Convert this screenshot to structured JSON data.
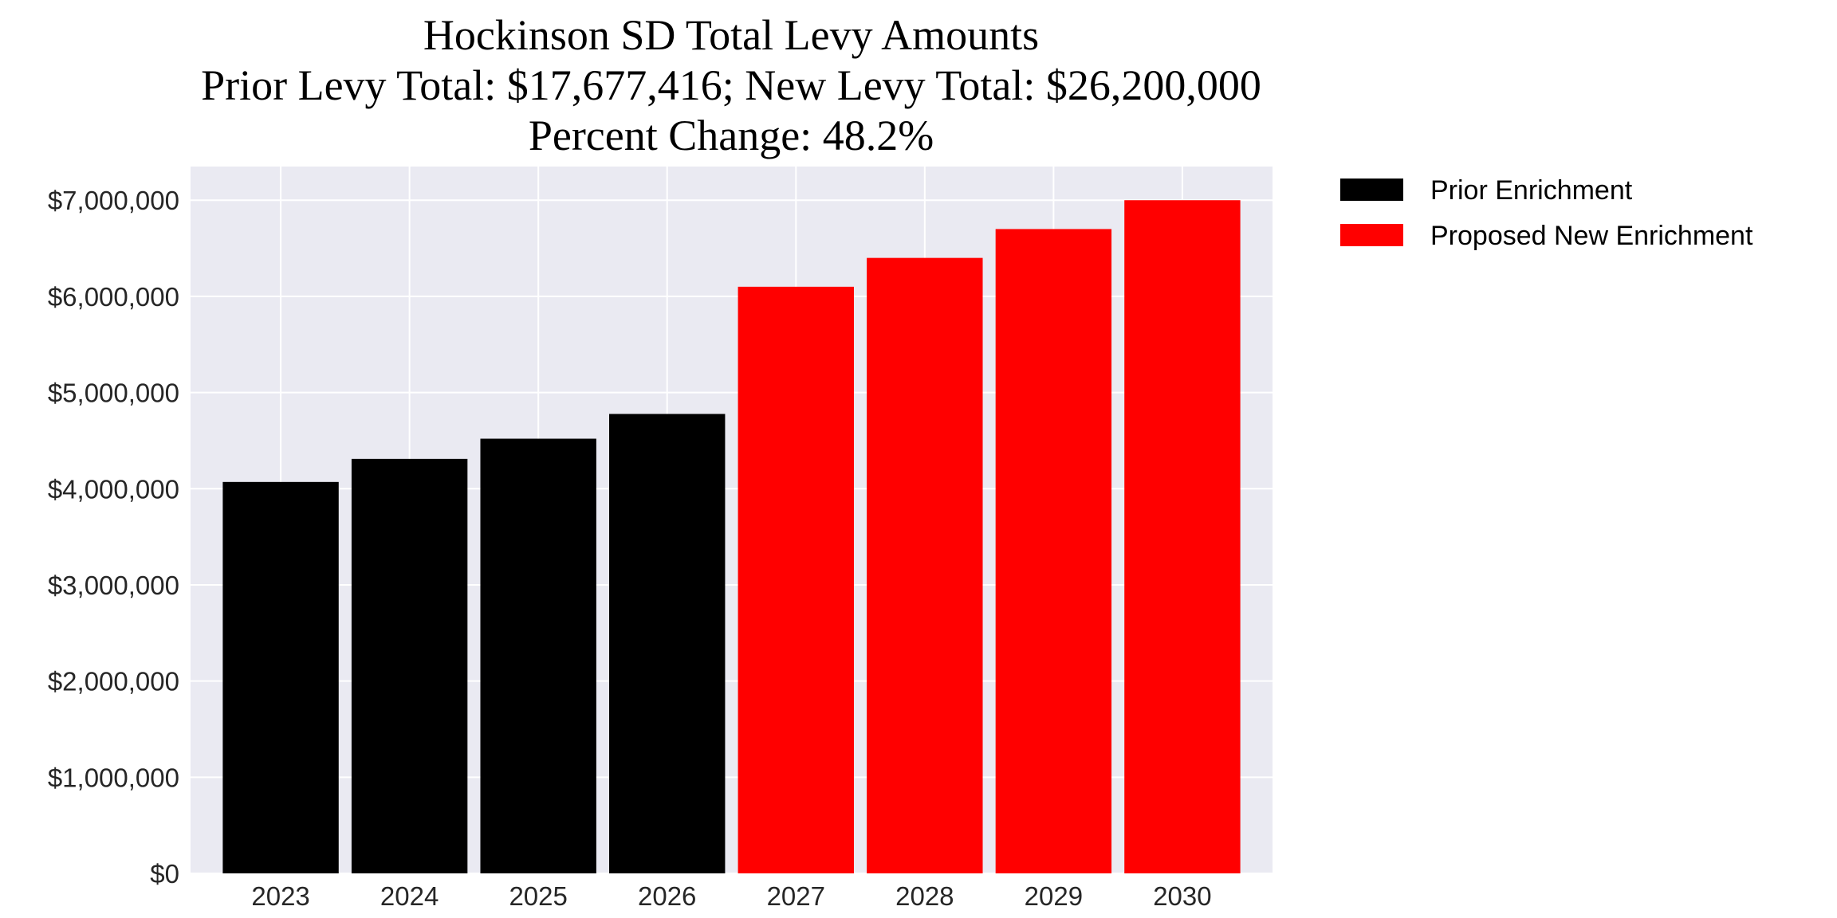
{
  "chart_data": {
    "type": "bar",
    "title": [
      "Hockinson SD Total Levy Amounts",
      "Prior Levy Total:  $17,677,416; New Levy Total: $26,200,000",
      "Percent Change: 48.2%"
    ],
    "xlabel": "",
    "ylabel": "",
    "categories": [
      "2023",
      "2024",
      "2025",
      "2026",
      "2027",
      "2028",
      "2029",
      "2030"
    ],
    "series": [
      {
        "name": "Prior Enrichment",
        "color": "#000000",
        "values": [
          4070000,
          4310000,
          4520000,
          4777416,
          null,
          null,
          null,
          null
        ]
      },
      {
        "name": "Proposed New Enrichment",
        "color": "#ff0000",
        "values": [
          null,
          null,
          null,
          null,
          6100000,
          6400000,
          6700000,
          7000000
        ]
      }
    ],
    "ylim": [
      0,
      7350000
    ],
    "yticks": [
      0,
      1000000,
      2000000,
      3000000,
      4000000,
      5000000,
      6000000,
      7000000
    ],
    "ytick_labels": [
      "$0",
      "$1,000,000",
      "$2,000,000",
      "$3,000,000",
      "$4,000,000",
      "$5,000,000",
      "$6,000,000",
      "$7,000,000"
    ],
    "grid": true,
    "background": "#eaeaf2",
    "legend_position": "outside-top-right"
  }
}
